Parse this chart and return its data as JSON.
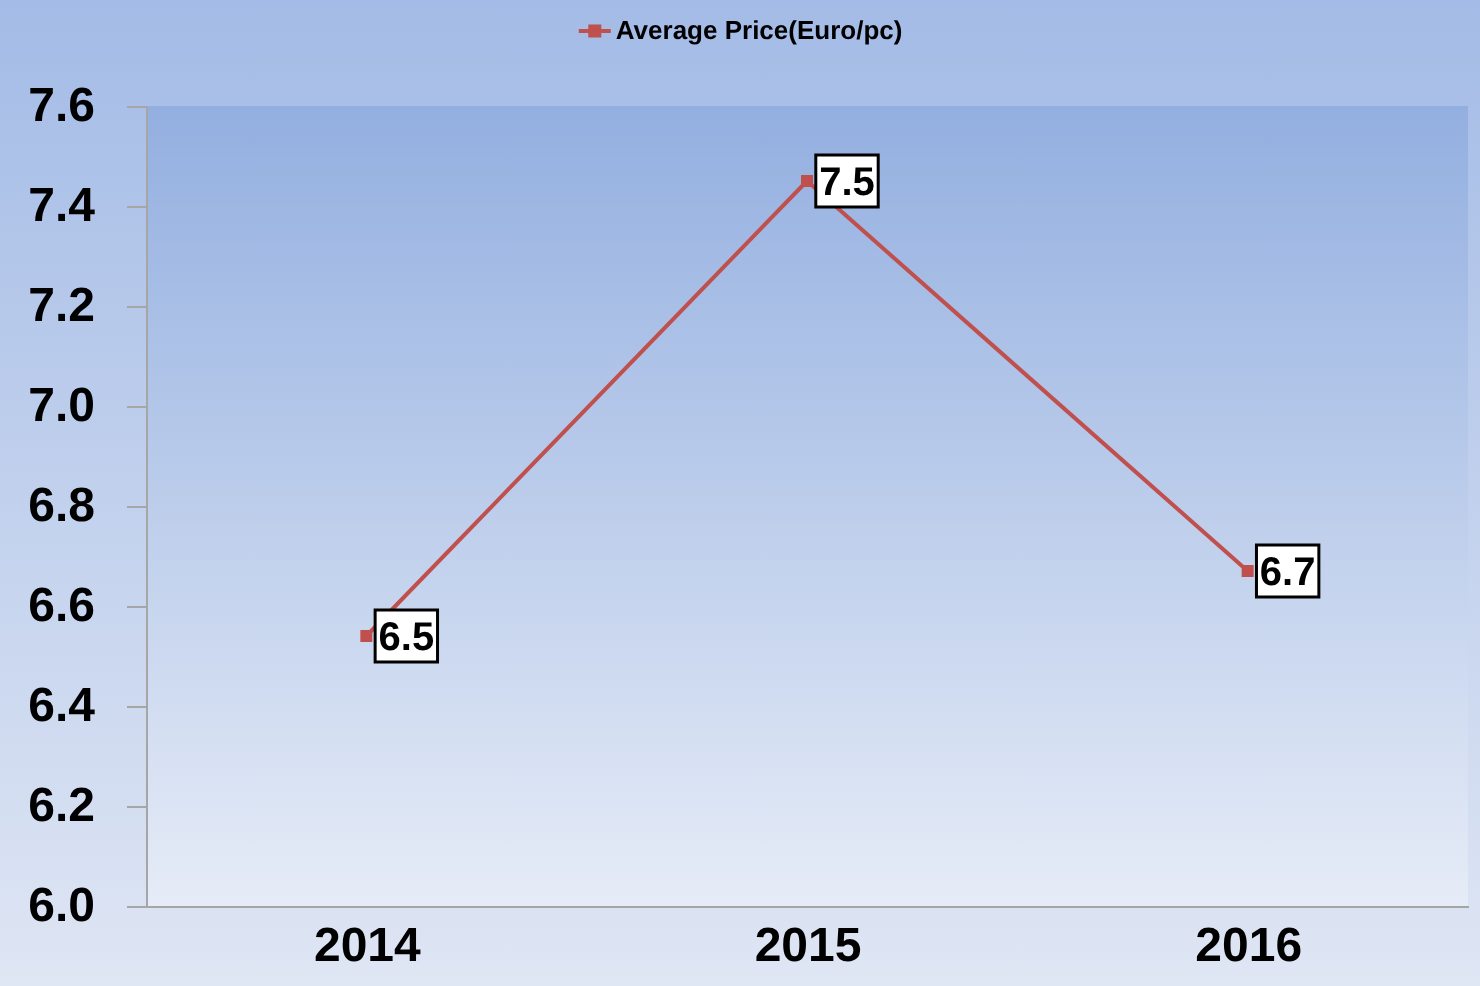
{
  "chart_data": {
    "type": "line",
    "categories": [
      "2014",
      "2015",
      "2016"
    ],
    "series": [
      {
        "name": "Average Price(Euro/pc)",
        "color": "#c0504d",
        "values": [
          6.54,
          7.45,
          6.67
        ],
        "value_labels": [
          "6.5",
          "7.5",
          "6.7"
        ]
      }
    ],
    "ylim": [
      6.0,
      7.6
    ],
    "yticks": [
      {
        "value": 6,
        "label": "6.0"
      },
      6.2,
      6.4,
      6.6,
      6.8,
      {
        "value": 7,
        "label": "7.0"
      },
      7.2,
      7.4,
      7.6
    ],
    "legend": "top",
    "marker": "square",
    "line_style": "solid"
  }
}
